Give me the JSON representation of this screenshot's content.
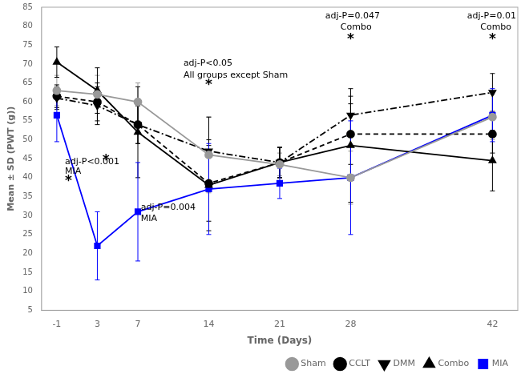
{
  "chart_data": {
    "type": "line",
    "x": [
      -1,
      3,
      7,
      14,
      21,
      28,
      42
    ],
    "series": [
      {
        "name": "Sham",
        "color": "#999999",
        "marker": "circle",
        "line_style": "solid",
        "values": [
          63,
          62,
          60,
          46,
          43.5,
          40,
          56
        ],
        "sd": [
          4,
          5,
          5,
          10,
          3,
          7,
          6
        ]
      },
      {
        "name": "CCLT",
        "color": "#000000",
        "marker": "circle",
        "line_style": "dashed",
        "values": [
          61.5,
          60,
          54,
          38.5,
          44,
          51.5,
          51.5
        ],
        "sd": [
          3,
          5,
          5,
          10,
          4,
          8,
          5
        ]
      },
      {
        "name": "DMM",
        "color": "#000000",
        "marker": "triangle_down",
        "line_style": "dashdot",
        "values": [
          61,
          59,
          54,
          47,
          44,
          56.5,
          62.5
        ],
        "sd": [
          3,
          5,
          5,
          9,
          4,
          5,
          5
        ]
      },
      {
        "name": "Combo",
        "color": "#000000",
        "marker": "triangle_up",
        "line_style": "solid",
        "values": [
          70.5,
          63,
          52,
          38,
          44,
          48.5,
          44.5
        ],
        "sd": [
          4,
          6,
          12,
          12,
          4,
          15,
          8
        ]
      },
      {
        "name": "MIA",
        "color": "#0000ff",
        "marker": "square",
        "line_style": "solid",
        "values": [
          56.5,
          22,
          31,
          37,
          38.5,
          40,
          56.5
        ],
        "sd": [
          7,
          9,
          13,
          12,
          4,
          15,
          7
        ]
      }
    ],
    "xlabel": "Time (Days)",
    "ylabel": "Mean ± SD (PWT (g))",
    "xlim": [
      -2.5,
      44.5
    ],
    "xticks": [
      -1,
      3,
      7,
      14,
      21,
      28,
      42
    ],
    "ylim": [
      5,
      85
    ],
    "yticks": [
      5,
      10,
      15,
      20,
      25,
      30,
      35,
      40,
      45,
      50,
      55,
      60,
      65,
      70,
      75,
      80,
      85
    ],
    "grid": false,
    "legend": "lower right",
    "annotations": [
      {
        "text": "adj-P<0.001",
        "x": -0.2,
        "y": 43.5
      },
      {
        "text": "MIA",
        "x": -0.2,
        "y": 41.0
      },
      {
        "text": "*",
        "x": -0.2,
        "y": 38.0
      },
      {
        "text": "*",
        "x": 3.5,
        "y": 43.5
      },
      {
        "text": "adj-P=0.004",
        "x": 7.3,
        "y": 31.5
      },
      {
        "text": "MIA",
        "x": 7.3,
        "y": 28.5
      },
      {
        "text": "adj-P<0.05",
        "x": 11.5,
        "y": 69.5
      },
      {
        "text": "All groups except Sham",
        "x": 11.5,
        "y": 66.5
      },
      {
        "text": "*",
        "x": 14.0,
        "y": 63.5
      },
      {
        "text": "adj-P=0.047",
        "x": 25.5,
        "y": 82.0
      },
      {
        "text": "Combo",
        "x": 27.0,
        "y": 79.0
      },
      {
        "text": "*",
        "x": 28.0,
        "y": 75.5
      },
      {
        "text": "adj-P=0.01",
        "x": 39.5,
        "y": 82.0
      },
      {
        "text": "Combo",
        "x": 40.8,
        "y": 79.0
      },
      {
        "text": "*",
        "x": 42.0,
        "y": 75.5
      }
    ]
  }
}
